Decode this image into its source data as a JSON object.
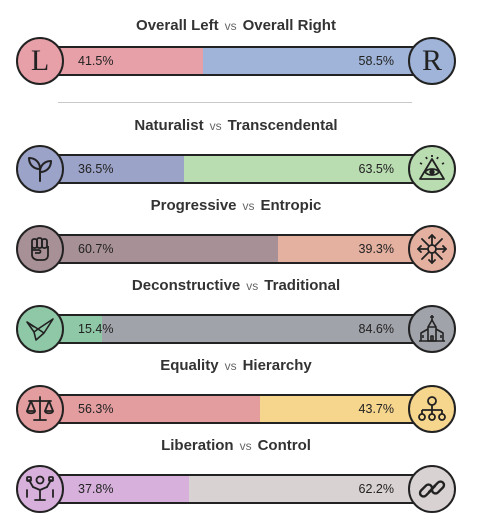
{
  "overall": {
    "left_label": "Overall Left",
    "vs": "vs",
    "right_label": "Overall Right",
    "left_pct": "41.5%",
    "right_pct": "58.5%",
    "left_value": 41.5,
    "left_icon": "L",
    "right_icon": "R",
    "left_color": "#e8a0a8",
    "right_color": "#9fb4d8"
  },
  "axes": [
    {
      "left_label": "Naturalist",
      "vs": "vs",
      "right_label": "Transcendental",
      "left_pct": "36.5%",
      "right_pct": "63.5%",
      "left_value": 36.5,
      "left_color": "#9ca3c9",
      "right_color": "#b9dcb1",
      "left_icon": "sprout-icon",
      "right_icon": "all-seeing-eye-icon"
    },
    {
      "left_label": "Progressive",
      "vs": "vs",
      "right_label": "Entropic",
      "left_pct": "60.7%",
      "right_pct": "39.3%",
      "left_value": 60.7,
      "left_color": "#a79096",
      "right_color": "#e4b0a0",
      "left_icon": "raised-fist-icon",
      "right_icon": "chaos-star-icon"
    },
    {
      "left_label": "Deconstructive",
      "vs": "vs",
      "right_label": "Traditional",
      "left_pct": "15.4%",
      "right_pct": "84.6%",
      "left_value": 15.4,
      "left_color": "#8fc8a6",
      "right_color": "#a1a3aa",
      "left_icon": "origami-bird-icon",
      "right_icon": "church-icon"
    },
    {
      "left_label": "Equality",
      "vs": "vs",
      "right_label": "Hierarchy",
      "left_pct": "56.3%",
      "right_pct": "43.7%",
      "left_value": 56.3,
      "left_color": "#e39d9f",
      "right_color": "#f6d58d",
      "left_icon": "scales-icon",
      "right_icon": "hierarchy-icon"
    },
    {
      "left_label": "Liberation",
      "vs": "vs",
      "right_label": "Control",
      "left_pct": "37.8%",
      "right_pct": "62.2%",
      "left_value": 37.8,
      "left_color": "#d7b0dc",
      "right_color": "#d9d2d2",
      "left_icon": "broken-chains-icon",
      "right_icon": "chain-link-icon"
    }
  ]
}
